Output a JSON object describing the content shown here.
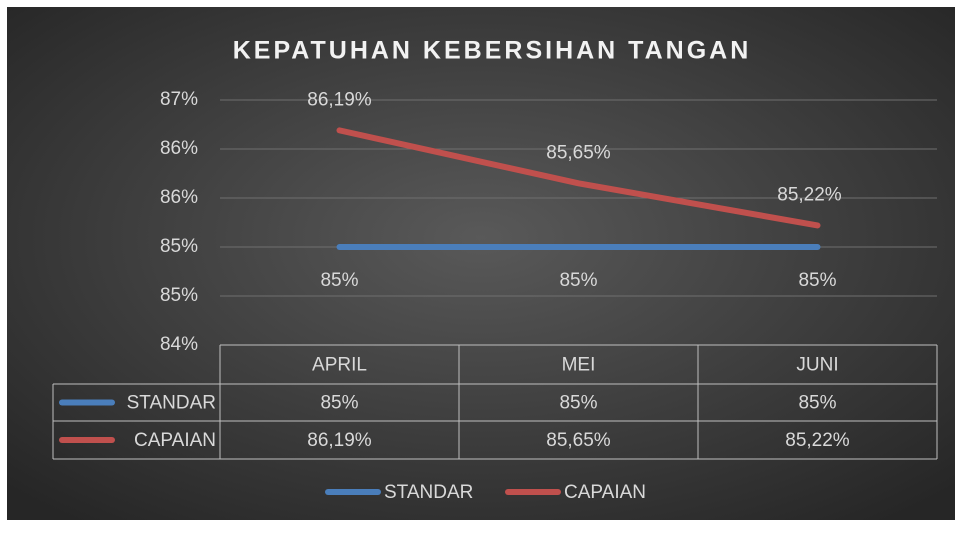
{
  "chart_data": {
    "type": "line",
    "title": "KEPATUHAN KEBERSIHAN TANGAN",
    "categories": [
      "APRIL",
      "MEI",
      "JUNI"
    ],
    "series": [
      {
        "name": "STANDAR",
        "color": "#4a7ebb",
        "values": [
          85,
          85,
          85
        ],
        "value_labels": [
          "85%",
          "85%",
          "85%"
        ]
      },
      {
        "name": "CAPAIAN",
        "color": "#c0504d",
        "values": [
          86.19,
          85.65,
          85.22
        ],
        "value_labels": [
          "86,19%",
          "85,65%",
          "85,22%"
        ]
      }
    ],
    "ylim": [
      84,
      86.5
    ],
    "yticks": [
      {
        "value": 84,
        "label": "84%"
      },
      {
        "value": 84.5,
        "label": "85%"
      },
      {
        "value": 85,
        "label": "85%"
      },
      {
        "value": 85.5,
        "label": "86%"
      },
      {
        "value": 86,
        "label": "86%"
      },
      {
        "value": 86.5,
        "label": "87%"
      }
    ],
    "grid": true,
    "legend": "bottom",
    "data_table": true
  }
}
